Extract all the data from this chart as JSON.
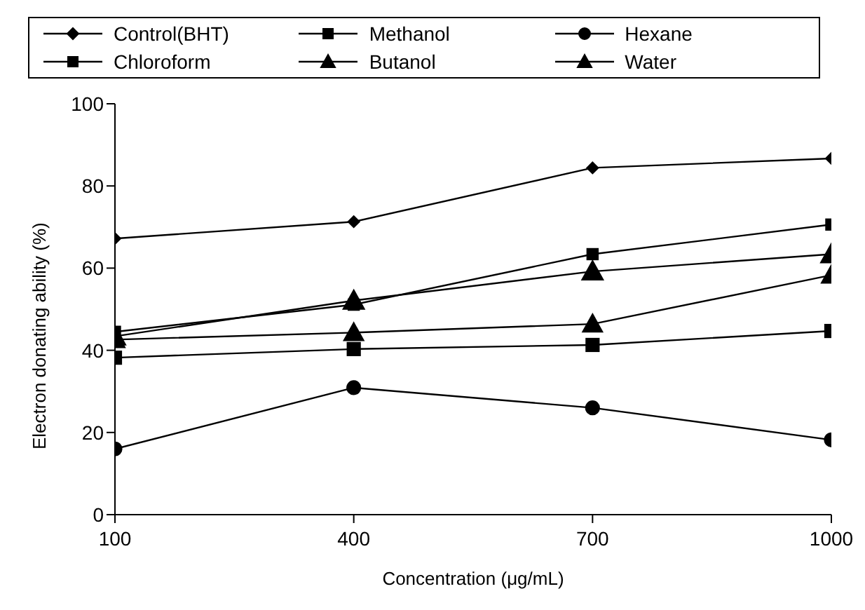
{
  "chart_data": {
    "type": "line",
    "xlabel": "Concentration (μg/mL)",
    "ylabel": "Electron donating ability (%)",
    "x": [
      100,
      400,
      700,
      1000
    ],
    "xlim": [
      100,
      1000
    ],
    "xticks": [
      100,
      400,
      700,
      1000
    ],
    "ylim": [
      0,
      100
    ],
    "yticks": [
      0,
      20,
      40,
      60,
      80,
      100
    ],
    "grid": false,
    "legend": "top",
    "line_style": "solid",
    "series": [
      {
        "name": "Control(BHT)",
        "color": "#000000",
        "marker": "diamond",
        "values": [
          67.2,
          71.3,
          84.4,
          86.7
        ]
      },
      {
        "name": "Methanol",
        "color": "#000000",
        "marker": "square",
        "values": [
          44.5,
          51.1,
          63.4,
          70.6
        ]
      },
      {
        "name": "Hexane",
        "color": "#000000",
        "marker": "circle",
        "values": [
          16,
          30.9,
          26,
          18.2
        ]
      },
      {
        "name": "Chloroform",
        "color": "#000000",
        "marker": "square",
        "values": [
          38.2,
          40.3,
          41.3,
          44.7
        ]
      },
      {
        "name": "Butanol",
        "color": "#000000",
        "marker": "triangle",
        "values": [
          42.6,
          44.3,
          46.4,
          58.3
        ]
      },
      {
        "name": "Water",
        "color": "#000000",
        "marker": "triangle",
        "values": [
          43.4,
          52.1,
          59.2,
          63.4
        ]
      }
    ]
  }
}
